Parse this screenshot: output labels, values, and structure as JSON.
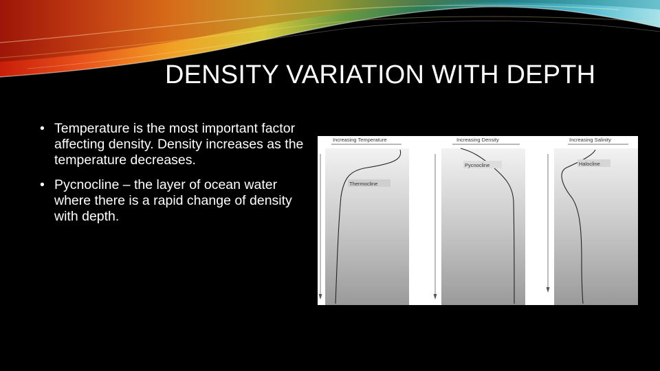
{
  "slide": {
    "title": "DENSITY VARIATION WITH DEPTH",
    "bullets": [
      {
        "marker": "•",
        "text": "Temperature is the most important factor affecting density. Density increases as the temperature decreases."
      },
      {
        "marker": "•",
        "text": "Pycnocline – the layer of ocean water where there is a rapid change of density with depth."
      }
    ]
  },
  "figure": {
    "panels": [
      {
        "axis_label": "Increasing Temperature",
        "curve_label": "Thermocline"
      },
      {
        "axis_label": "Increasing Density",
        "curve_label": "Pycnocline"
      },
      {
        "axis_label": "Increasing Salinity",
        "curve_label": "Halocline"
      }
    ]
  }
}
